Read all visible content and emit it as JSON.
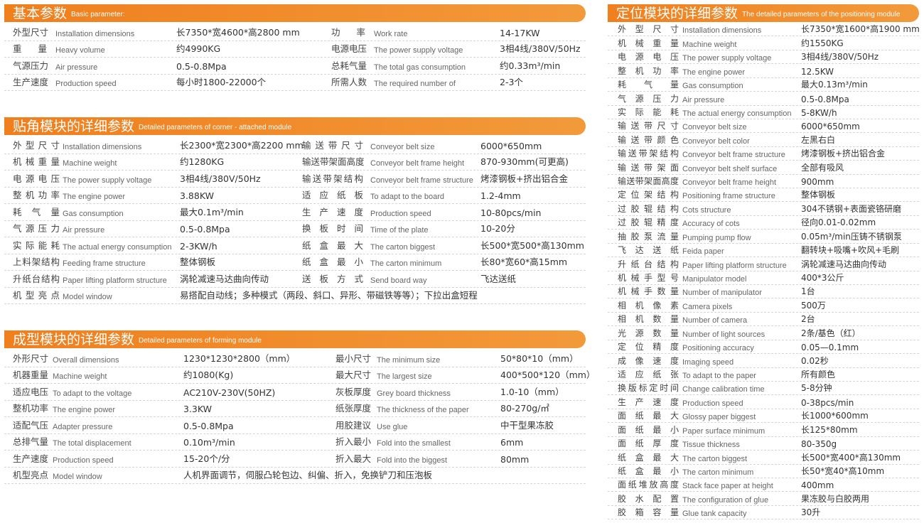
{
  "basic": {
    "title_cn": "基本参数",
    "title_en": "Basic parameter:",
    "rows": [
      [
        [
          "外型尺寸",
          "Installation dimensions",
          "长7350*宽4600*高2800 mm"
        ],
        [
          "功率",
          "Work rate",
          "14-17KW"
        ]
      ],
      [
        [
          "重量",
          "Heavy volume",
          "约4990KG"
        ],
        [
          "电源电压",
          "The power supply voltage",
          "3相4线/380V/50Hz"
        ]
      ],
      [
        [
          "气源压力",
          "Air pressure",
          "0.5-0.8Mpa"
        ],
        [
          "总耗气量",
          "The total gas consumption",
          "约0.33m³/min"
        ]
      ],
      [
        [
          "生产速度",
          "Production speed",
          "每小时1800-22000个"
        ],
        [
          "所需人数",
          "The required number of",
          "2-3个"
        ]
      ]
    ]
  },
  "corner": {
    "title_cn": "贴角模块的详细参数",
    "title_en": "Detailed parameters of corner - attached module",
    "rows": [
      [
        [
          "外型尺寸",
          "Installation dimensions",
          "长2300*宽2300*高2200 mm"
        ],
        [
          "输送带尺寸",
          "Conveyor belt size",
          "6000*650mm"
        ]
      ],
      [
        [
          "机械重量",
          "Machine weight",
          "约1280KG"
        ],
        [
          "输送带架面高度",
          "Conveyor belt frame height",
          "870-930mm(可更高)"
        ]
      ],
      [
        [
          "电源电压",
          "The power supply voltage",
          "3相4线/380V/50Hz"
        ],
        [
          "输送带架结构",
          "Conveyor belt frame structure",
          "烤漆钢板+挤出铝合金"
        ]
      ],
      [
        [
          "整机功率",
          "The engine power",
          "3.88KW"
        ],
        [
          "适应纸板",
          "To adapt to the board",
          "1.2-4mm"
        ]
      ],
      [
        [
          "耗气量",
          "Gas consumption",
          "最大0.1m³/min"
        ],
        [
          "生产速度",
          "Production speed",
          "10-80pcs/min"
        ]
      ],
      [
        [
          "气源压力",
          "Air pressure",
          "0.5-0.8Mpa"
        ],
        [
          "换板时间",
          "Time of the plate",
          "10-20分"
        ]
      ],
      [
        [
          "实际能耗",
          "The actual energy consumption",
          "2-3KW/h"
        ],
        [
          "纸盒最大",
          "The carton biggest",
          "长500*宽500*高130mm"
        ]
      ],
      [
        [
          "上料架结构",
          "Feeding frame structure",
          "整体钢板"
        ],
        [
          "纸盒最小",
          "The carton minimum",
          "长80*宽60*高15mm"
        ]
      ],
      [
        [
          "升纸台结构",
          "Paper lifting platform structure",
          "涡轮减速马达曲向传动"
        ],
        [
          "送板方式",
          "Send board way",
          "飞达送纸"
        ]
      ],
      [
        [
          "机型亮点",
          "Model window",
          "易搭配自动线；多种模式（两段、斜口、异形、带磁铁等等）；下拉出盒短程"
        ]
      ]
    ]
  },
  "forming": {
    "title_cn": "成型模块的详细参数",
    "title_en": "Detailed parameters of forming module",
    "rows": [
      [
        [
          "外形尺寸",
          "Overall dimensions",
          "1230*1230*2800（mm）"
        ],
        [
          "最小尺寸",
          "The minimum size",
          "50*80*10（mm）"
        ]
      ],
      [
        [
          "机器重量",
          "Machine weight",
          "约1080(Kg)"
        ],
        [
          "最大尺寸",
          "The largest size",
          "400*500*120（mm）"
        ]
      ],
      [
        [
          "适应电压",
          "To adapt to the voltage",
          "AC210V-230V(50HZ)"
        ],
        [
          "灰板厚度",
          "Grey board thickness",
          "1.0-10（mm）"
        ]
      ],
      [
        [
          "整机功率",
          "The engine power",
          "3.3KW"
        ],
        [
          "纸张厚度",
          "The thickness of the paper",
          "80-270g/㎡"
        ]
      ],
      [
        [
          "适配气压",
          "Adapter pressure",
          "0.5-0.8Mpa"
        ],
        [
          "用胶建议",
          "Use glue",
          "中干型果冻胶"
        ]
      ],
      [
        [
          "总排气量",
          "The total displacement",
          "0.10m³/min"
        ],
        [
          "折入最小",
          "Fold into the smallest",
          "6mm"
        ]
      ],
      [
        [
          "生产速度",
          "Production speed",
          "15-20个/分"
        ],
        [
          "折入最大",
          "Fold into the biggest",
          "80mm"
        ]
      ],
      [
        [
          "机型亮点",
          "Model window",
          "人机界面调节，伺服凸轮包边、纠偏、折入，免换铲刀和压泡板"
        ]
      ]
    ]
  },
  "positioning": {
    "title_cn": "定位模块的详细参数",
    "title_en": "The detailed parameters of the positioning module",
    "rows": [
      [
        [
          "外型尺寸",
          "Installation dimensions",
          "长7350*宽1600*高1900 mm"
        ]
      ],
      [
        [
          "机械重量",
          "Machine weight",
          "约1550KG"
        ]
      ],
      [
        [
          "电源电压",
          "The power supply voltage",
          "3相4线/380V/50Hz"
        ]
      ],
      [
        [
          "整机功率",
          "The engine power",
          "12.5KW"
        ]
      ],
      [
        [
          "耗气量",
          "Gas consumption",
          "最大0.13m³/min"
        ]
      ],
      [
        [
          "气源压力",
          "Air pressure",
          "0.5-0.8Mpa"
        ]
      ],
      [
        [
          "实际能耗",
          "The actual energy consumption",
          "5-8KW/h"
        ]
      ],
      [
        [
          "输送带尺寸",
          "Conveyor belt size",
          "6000*650mm"
        ]
      ],
      [
        [
          "输送带颜色",
          "Conveyor belt color",
          "左黑右白"
        ]
      ],
      [
        [
          "输送带架结构",
          "Conveyor belt frame structure",
          "烤漆钢板+挤出铝合金"
        ]
      ],
      [
        [
          "输送带架面",
          "Conveyor belt shelf surface",
          "全部有吸风"
        ]
      ],
      [
        [
          "输送带架面高度",
          "Conveyor belt frame height",
          "900mm"
        ]
      ],
      [
        [
          "定位架结构",
          "Positioning frame structure",
          "整体钢板"
        ]
      ],
      [
        [
          "过胶辊结构",
          "Cots structure",
          "304不锈钢+表面瓷铬研磨"
        ]
      ],
      [
        [
          "过胶辊精度",
          "Accuracy of cots",
          "径向0.01-0.02mm"
        ]
      ],
      [
        [
          "抽胶泵流量",
          "Pumping pump flow",
          "0.05m³/min压铸不锈钢泵"
        ]
      ],
      [
        [
          "飞达送纸",
          "Feida paper",
          "翻转块+吸嘴+吹风+毛刷"
        ]
      ],
      [
        [
          "升纸台结构",
          "Paper lifting platform structure",
          "涡轮减速马达曲向传动"
        ]
      ],
      [
        [
          "机械手型号",
          "Manipulator model",
          "400*3公斤"
        ]
      ],
      [
        [
          "机械手数量",
          "Number of manipulator",
          "1台"
        ]
      ],
      [
        [
          "相机像素",
          "Camera pixels",
          "500万"
        ]
      ],
      [
        [
          "相机数量",
          "Number of camera",
          "2台"
        ]
      ],
      [
        [
          "光源数量",
          "Number of light sources",
          "2条/基色（红）"
        ]
      ],
      [
        [
          "定位精度",
          "Positioning accuracy",
          "0.05—0.1mm"
        ]
      ],
      [
        [
          "成像速度",
          "Imaging speed",
          "0.02秒"
        ]
      ],
      [
        [
          "适应纸张",
          "To adapt to the paper",
          "所有颜色"
        ]
      ],
      [
        [
          "换版标定时间",
          "Change calibration time",
          "5-8分钟"
        ]
      ],
      [
        [
          "生产速度",
          "Production speed",
          "0-38pcs/min"
        ]
      ],
      [
        [
          "面纸最大",
          "Glossy paper biggest",
          "长1000*600mm"
        ]
      ],
      [
        [
          "面纸最小",
          "Paper surface minimum",
          "长125*80mm"
        ]
      ],
      [
        [
          "面纸厚度",
          "Tissue thickness",
          "80-350g"
        ]
      ],
      [
        [
          "纸盒最大",
          "The carton biggest",
          "长500*宽400*高130mm"
        ]
      ],
      [
        [
          "纸盒最小",
          "The carton minimum",
          "长50*宽40*高10mm"
        ]
      ],
      [
        [
          "面纸堆放高度",
          "Stack face paper at height",
          "400mm"
        ]
      ],
      [
        [
          "胶水配置",
          "The configuration of glue",
          "果冻胶与白胶两用"
        ]
      ],
      [
        [
          "胶箱容量",
          "Glue tank capacity",
          "30升"
        ]
      ]
    ]
  },
  "colors": {
    "header": "#f07f1e",
    "divider": "#d6d6d6"
  }
}
